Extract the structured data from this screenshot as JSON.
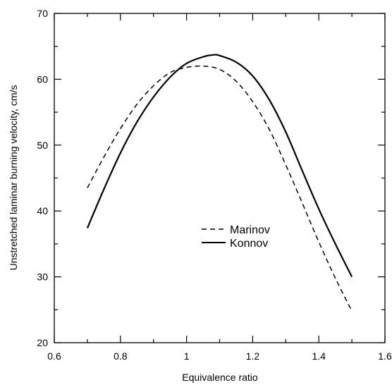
{
  "chart_data": {
    "type": "line",
    "title": "",
    "xlabel": "Equivalence ratio",
    "ylabel": "Unstretched laminar burning velocity, cm/s",
    "xlim": [
      0.6,
      1.6
    ],
    "ylim": [
      20,
      70
    ],
    "xticks": [
      0.6,
      0.8,
      1,
      1.2,
      1.4,
      1.6
    ],
    "xtick_labels": [
      "0.6",
      "0.8",
      "1",
      "1.2",
      "1.4",
      "1.6"
    ],
    "yticks": [
      20,
      30,
      40,
      50,
      60,
      70
    ],
    "ytick_labels": [
      "20",
      "30",
      "40",
      "50",
      "60",
      "70"
    ],
    "grid": false,
    "legend_position": "center-right",
    "series": [
      {
        "name": "Marinov",
        "style": "dashed",
        "color": "#000000",
        "x": [
          0.7,
          0.75,
          0.8,
          0.85,
          0.9,
          0.95,
          1.0,
          1.05,
          1.1,
          1.15,
          1.2,
          1.25,
          1.3,
          1.35,
          1.4,
          1.45,
          1.5
        ],
        "y": [
          43.5,
          48.2,
          52.5,
          56.2,
          59.0,
          61.0,
          61.8,
          62.0,
          61.5,
          59.7,
          56.6,
          52.4,
          47.0,
          41.2,
          35.3,
          29.8,
          24.8
        ]
      },
      {
        "name": "Konnov",
        "style": "solid",
        "color": "#000000",
        "x": [
          0.7,
          0.75,
          0.8,
          0.85,
          0.9,
          0.95,
          1.0,
          1.05,
          1.08,
          1.1,
          1.15,
          1.2,
          1.25,
          1.3,
          1.35,
          1.4,
          1.45,
          1.5
        ],
        "y": [
          37.4,
          43.3,
          48.8,
          53.5,
          57.3,
          60.3,
          62.4,
          63.4,
          63.7,
          63.6,
          62.6,
          60.5,
          56.9,
          52.0,
          46.1,
          40.3,
          35.0,
          30.0
        ]
      }
    ]
  }
}
